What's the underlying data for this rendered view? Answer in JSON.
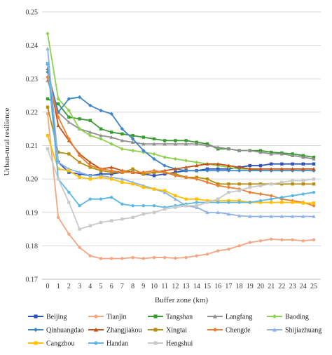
{
  "chart_data": {
    "type": "line",
    "xlabel": "Buffer zone (km)",
    "ylabel": "Urban-rural resilience",
    "ylim": [
      0.17,
      0.25
    ],
    "yticks": [
      "0.17",
      "0.18",
      "0.19",
      "0.20",
      "0.21",
      "0.22",
      "0.23",
      "0.24",
      "0.25"
    ],
    "grid": "horizontal",
    "legend_position": "bottom",
    "x": [
      0,
      1,
      2,
      3,
      4,
      5,
      6,
      7,
      8,
      9,
      10,
      11,
      12,
      13,
      14,
      15,
      16,
      17,
      18,
      19,
      20,
      21,
      22,
      23,
      24,
      25
    ],
    "series": [
      {
        "name": "Beijing",
        "color": "#2e52b9",
        "marker": "square",
        "values": [
          0.2345,
          0.205,
          0.202,
          0.2015,
          0.201,
          0.2015,
          0.2015,
          0.202,
          0.202,
          0.2015,
          0.201,
          0.2015,
          0.202,
          0.2025,
          0.2025,
          0.203,
          0.203,
          0.203,
          0.2035,
          0.204,
          0.204,
          0.2045,
          0.2045,
          0.2045,
          0.2045,
          0.2045
        ]
      },
      {
        "name": "Tianjin",
        "color": "#f4a582",
        "marker": "circle",
        "values": [
          0.2195,
          0.1885,
          0.1835,
          0.1795,
          0.177,
          0.1762,
          0.1762,
          0.1762,
          0.1765,
          0.1762,
          0.1765,
          0.1765,
          0.1763,
          0.1765,
          0.177,
          0.1775,
          0.1785,
          0.179,
          0.18,
          0.181,
          0.1815,
          0.182,
          0.1818,
          0.1818,
          0.1815,
          0.1818
        ]
      },
      {
        "name": "Tangshan",
        "color": "#3a9b31",
        "marker": "square",
        "values": [
          0.224,
          0.2225,
          0.2185,
          0.218,
          0.2175,
          0.215,
          0.214,
          0.2135,
          0.213,
          0.2125,
          0.212,
          0.2115,
          0.2115,
          0.2115,
          0.211,
          0.2105,
          0.209,
          0.209,
          0.2085,
          0.2085,
          0.2085,
          0.208,
          0.2078,
          0.2075,
          0.207,
          0.2065
        ]
      },
      {
        "name": "Langfang",
        "color": "#909090",
        "marker": "triangle",
        "values": [
          0.2295,
          0.22,
          0.217,
          0.215,
          0.214,
          0.213,
          0.2125,
          0.2115,
          0.211,
          0.2105,
          0.2105,
          0.2105,
          0.2105,
          0.2105,
          0.2105,
          0.21,
          0.2095,
          0.209,
          0.2085,
          0.2085,
          0.208,
          0.2075,
          0.2075,
          0.207,
          0.2065,
          0.206
        ]
      },
      {
        "name": "Baoding",
        "color": "#8fd14f",
        "marker": "diamond",
        "values": [
          0.2435,
          0.224,
          0.2205,
          0.215,
          0.213,
          0.212,
          0.2105,
          0.209,
          0.2085,
          0.208,
          0.2075,
          0.2065,
          0.206,
          0.2055,
          0.205,
          0.2045,
          0.204,
          0.2035,
          0.203,
          0.203,
          0.2025,
          0.2025,
          0.2025,
          0.2025,
          0.2025,
          0.2025
        ]
      },
      {
        "name": "Qinhuangdao",
        "color": "#3d85c6",
        "marker": "diamond",
        "values": [
          0.232,
          0.22,
          0.224,
          0.2245,
          0.222,
          0.2205,
          0.2195,
          0.215,
          0.212,
          0.2085,
          0.206,
          0.204,
          0.203,
          0.2025,
          0.2025,
          0.2025,
          0.2025,
          0.2025,
          0.2025,
          0.2025,
          0.2025,
          0.2025,
          0.2025,
          0.2025,
          0.2025,
          0.2025
        ]
      },
      {
        "name": "Zhangjiakou",
        "color": "#c45214",
        "marker": "triangle",
        "values": [
          0.233,
          0.216,
          0.2115,
          0.2075,
          0.205,
          0.203,
          0.2035,
          0.2025,
          0.202,
          0.2015,
          0.202,
          0.2025,
          0.203,
          0.2035,
          0.204,
          0.2045,
          0.2045,
          0.204,
          0.2035,
          0.203,
          0.203,
          0.203,
          0.203,
          0.203,
          0.203,
          0.203
        ]
      },
      {
        "name": "Xingtai",
        "color": "#b8900e",
        "marker": "square",
        "values": [
          0.2215,
          0.208,
          0.2075,
          0.205,
          0.2035,
          0.2025,
          0.202,
          0.202,
          0.203,
          0.2015,
          0.202,
          0.202,
          0.2015,
          0.2005,
          0.2005,
          0.2,
          0.1985,
          0.1985,
          0.1985,
          0.1985,
          0.1985,
          0.1985,
          0.1985,
          0.1985,
          0.1985,
          0.1985
        ]
      },
      {
        "name": "Chengde",
        "color": "#ed7d31",
        "marker": "diamond",
        "values": [
          0.2305,
          0.2185,
          0.212,
          0.207,
          0.204,
          0.203,
          0.2025,
          0.202,
          0.202,
          0.202,
          0.2025,
          0.202,
          0.201,
          0.2005,
          0.2,
          0.199,
          0.198,
          0.1975,
          0.197,
          0.196,
          0.1955,
          0.195,
          0.194,
          0.1935,
          0.193,
          0.192
        ]
      },
      {
        "name": "Shijiazhuang",
        "color": "#8db4e2",
        "marker": "triangle",
        "values": [
          0.239,
          0.205,
          0.203,
          0.202,
          0.201,
          0.201,
          0.2005,
          0.2,
          0.199,
          0.198,
          0.197,
          0.196,
          0.194,
          0.192,
          0.1915,
          0.19,
          0.19,
          0.1895,
          0.189,
          0.1888,
          0.1888,
          0.1888,
          0.1888,
          0.1888,
          0.1888,
          0.1888
        ]
      },
      {
        "name": "Cangzhou",
        "color": "#ffc000",
        "marker": "square",
        "values": [
          0.213,
          0.203,
          0.2025,
          0.2005,
          0.2,
          0.2005,
          0.2,
          0.199,
          0.1985,
          0.1975,
          0.197,
          0.1965,
          0.195,
          0.194,
          0.194,
          0.1935,
          0.1935,
          0.1935,
          0.1935,
          0.193,
          0.193,
          0.193,
          0.193,
          0.193,
          0.1928,
          0.1928
        ]
      },
      {
        "name": "Handan",
        "color": "#5bb8e6",
        "marker": "circle",
        "values": [
          0.2345,
          0.2,
          0.196,
          0.192,
          0.194,
          0.194,
          0.1945,
          0.1925,
          0.192,
          0.192,
          0.192,
          0.1915,
          0.192,
          0.1925,
          0.193,
          0.193,
          0.193,
          0.193,
          0.193,
          0.193,
          0.1935,
          0.194,
          0.1945,
          0.195,
          0.1955,
          0.196
        ]
      },
      {
        "name": "Hengshui",
        "color": "#c9c9c9",
        "marker": "square",
        "values": [
          0.209,
          0.2,
          0.193,
          0.185,
          0.186,
          0.187,
          0.1875,
          0.188,
          0.1885,
          0.1895,
          0.19,
          0.191,
          0.1915,
          0.192,
          0.192,
          0.193,
          0.194,
          0.196,
          0.1965,
          0.1975,
          0.198,
          0.1985,
          0.199,
          0.1995,
          0.1995,
          0.2
        ]
      }
    ]
  }
}
